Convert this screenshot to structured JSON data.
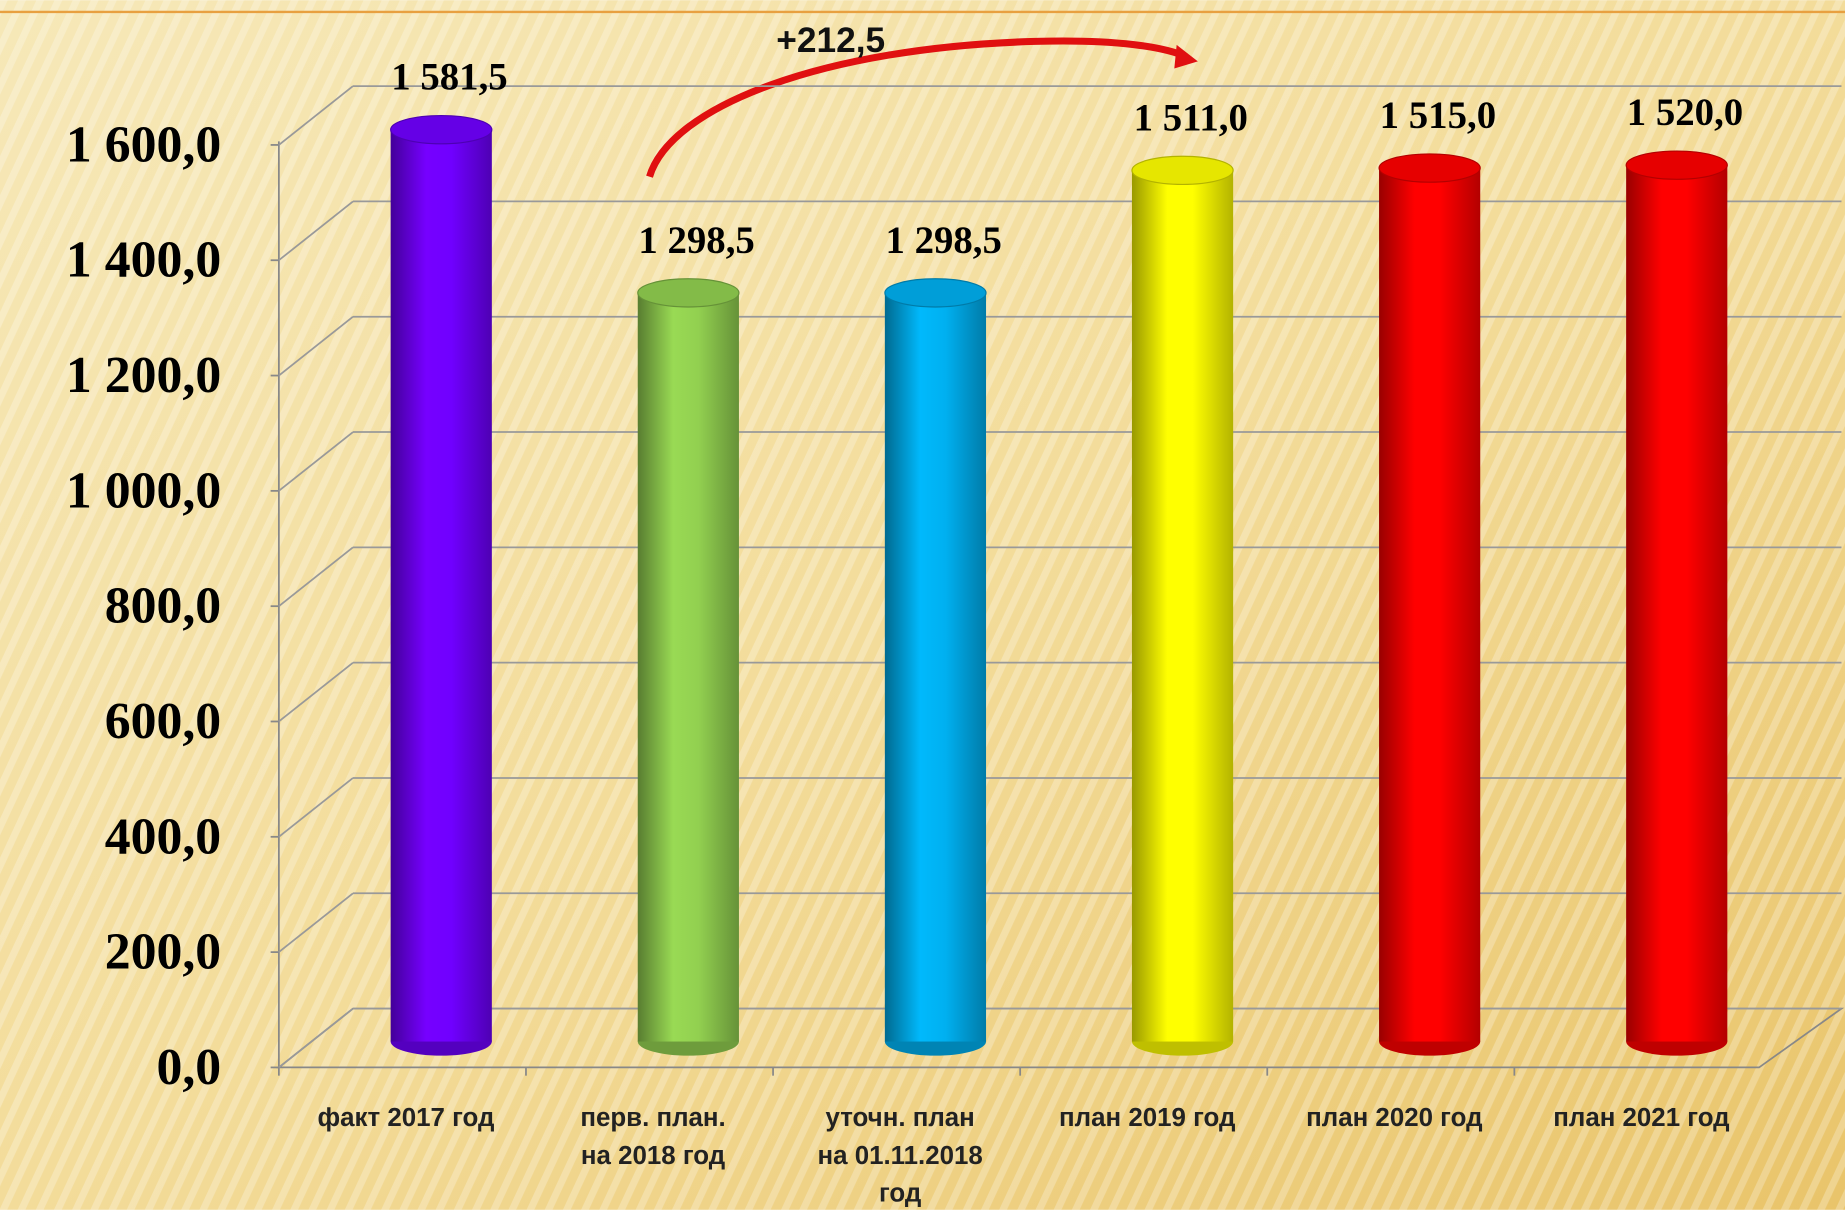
{
  "chart_data": {
    "type": "bar3d",
    "categories": [
      [
        "факт 2017 год"
      ],
      [
        "перв. план.",
        "на 2018 год"
      ],
      [
        "уточн. план",
        "на 01.11.2018",
        "год"
      ],
      [
        "план 2019 год"
      ],
      [
        "план 2020 год"
      ],
      [
        "план 2021 год"
      ]
    ],
    "values": [
      1581.5,
      1298.5,
      1298.5,
      1511.0,
      1515.0,
      1520.0
    ],
    "value_labels": [
      "1 581,5",
      "1 298,5",
      "1 298,5",
      "1 511,0",
      "1 515,0",
      "1 520,0"
    ],
    "colors": [
      "#7000ff",
      "#92d050",
      "#00b0f0",
      "#ffff00",
      "#ff0000",
      "#ff0000"
    ],
    "ylim": [
      0,
      1600
    ],
    "yticks": [
      {
        "value": 0,
        "label": "0,0"
      },
      {
        "value": 200,
        "label": "200,0"
      },
      {
        "value": 400,
        "label": "400,0"
      },
      {
        "value": 600,
        "label": "600,0"
      },
      {
        "value": 800,
        "label": "800,0"
      },
      {
        "value": 1000,
        "label": "1 000,0"
      },
      {
        "value": 1200,
        "label": "1 200,0"
      },
      {
        "value": 1400,
        "label": "1 400,0"
      },
      {
        "value": 1600,
        "label": "1 600,0"
      }
    ],
    "grid": true,
    "annotation": "+212,5"
  }
}
